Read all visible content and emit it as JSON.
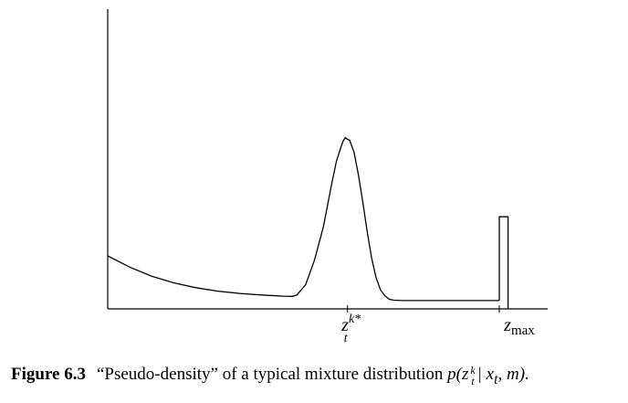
{
  "figure": {
    "number": "Figure 6.3",
    "caption_text": "“Pseudo-density” of a typical mixture distribution",
    "caption_math": {
      "prefix": "p(z",
      "sup": "k",
      "sub": "t",
      "suffix": "| x",
      "suffix_sub": "t",
      "tail": ", m)."
    }
  },
  "chart_data": {
    "type": "line",
    "title": "",
    "xlabel": "",
    "ylabel": "",
    "x_tick_labels": [
      {
        "base": "z",
        "sup": "k*",
        "sub": "t",
        "x": 0.545
      },
      {
        "base": "z",
        "sub": "max",
        "x": 0.89
      }
    ],
    "xlim": [
      0,
      1
    ],
    "ylim": [
      0,
      1
    ],
    "grid": false,
    "legend": "none",
    "series": [
      {
        "values_x": [
          0,
          0.05,
          0.1,
          0.15,
          0.2,
          0.25,
          0.3,
          0.35,
          0.4,
          0.42,
          0.43,
          0.45,
          0.47,
          0.49,
          0.5,
          0.51,
          0.52,
          0.53,
          0.535,
          0.54,
          0.545,
          0.55,
          0.56,
          0.57,
          0.58,
          0.59,
          0.6,
          0.61,
          0.62,
          0.63,
          0.64,
          0.65,
          0.67,
          0.7,
          0.75,
          0.8,
          0.85,
          0.89
        ],
        "values_y": [
          0.305,
          0.24,
          0.188,
          0.15,
          0.122,
          0.102,
          0.089,
          0.08,
          0.073,
          0.072,
          0.08,
          0.14,
          0.28,
          0.47,
          0.6,
          0.73,
          0.85,
          0.93,
          0.965,
          0.985,
          0.975,
          0.97,
          0.9,
          0.77,
          0.61,
          0.44,
          0.29,
          0.18,
          0.11,
          0.075,
          0.055,
          0.05,
          0.048,
          0.048,
          0.048,
          0.048,
          0.048,
          0.048
        ]
      }
    ],
    "spike": {
      "x_start": 0.89,
      "x_end": 0.91,
      "height": 0.53
    }
  }
}
